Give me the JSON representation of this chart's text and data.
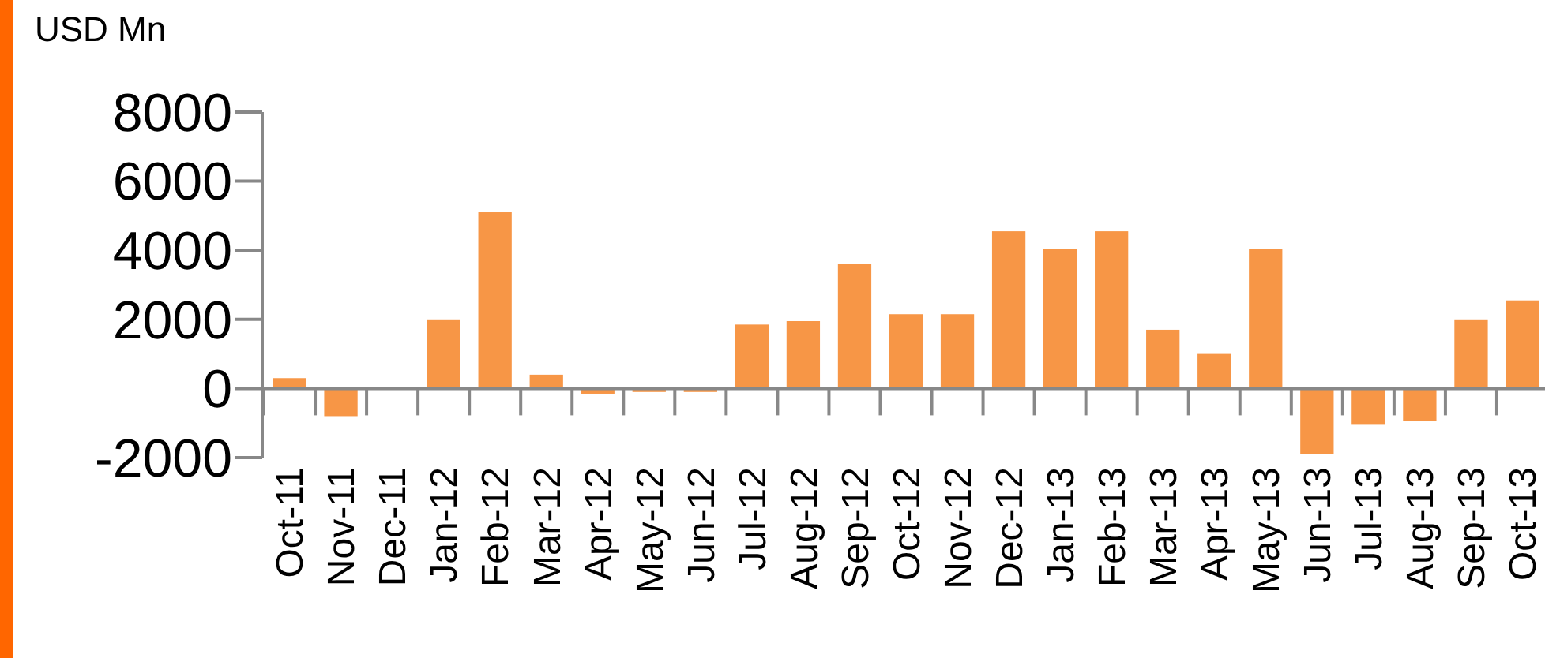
{
  "chart_data": {
    "type": "bar",
    "ylabel": "USD Mn",
    "categories": [
      "Oct-11",
      "Nov-11",
      "Dec-11",
      "Jan-12",
      "Feb-12",
      "Mar-12",
      "Apr-12",
      "May-12",
      "Jun-12",
      "Jul-12",
      "Aug-12",
      "Sep-12",
      "Oct-12",
      "Nov-12",
      "Dec-12",
      "Jan-13",
      "Feb-13",
      "Mar-13",
      "Apr-13",
      "May-13",
      "Jun-13",
      "Jul-13",
      "Aug-13",
      "Sep-13",
      "Oct-13"
    ],
    "values": [
      300,
      -800,
      0,
      2000,
      5100,
      400,
      -150,
      -100,
      -100,
      1850,
      1950,
      3600,
      2150,
      2150,
      4550,
      4050,
      4550,
      1700,
      1000,
      4050,
      -1900,
      -1050,
      -950,
      2000,
      2550
    ],
    "color": "#f79646",
    "ylim": [
      -2000,
      8000
    ],
    "yticks": [
      -2000,
      0,
      2000,
      4000,
      6000,
      8000
    ],
    "grid": false
  }
}
